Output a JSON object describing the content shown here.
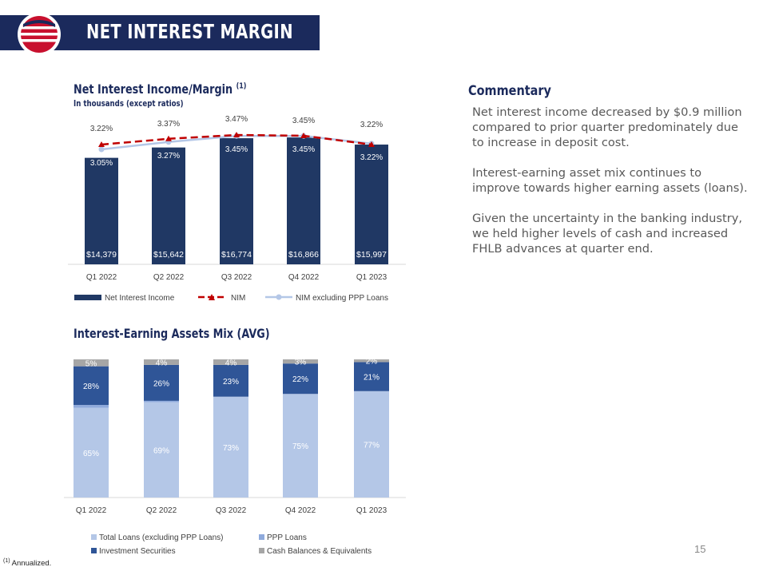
{
  "header": {
    "title": "NET INTEREST MARGIN"
  },
  "chart1": {
    "title": "Net Interest Income/Margin ",
    "title_sup": "(1)",
    "subtitle": "In thousands (except ratios)"
  },
  "chart2": {
    "title": "Interest-Earning Assets Mix (AVG)"
  },
  "commentary": {
    "heading": "Commentary",
    "paragraphs": [
      "Net interest income decreased by $0.9 million compared to prior quarter predominately due to increase in deposit cost.",
      "Interest-earning asset mix continues to improve towards higher earning assets (loans).",
      "Given the uncertainty in the banking industry, we held higher levels of cash and increased FHLB advances at quarter end."
    ]
  },
  "page_number": "15",
  "footnote": {
    "marker": "(1)",
    "text": " Annualized."
  },
  "colors": {
    "navy": "#1b2a5c",
    "bar": "#203864",
    "nim": "#c00000",
    "nim_ex": "#b4c7e7",
    "loans": "#b4c7e7",
    "ppp": "#8faadc",
    "inv": "#2f5597",
    "cash": "#a6a6a6"
  },
  "chart_data": [
    {
      "type": "bar",
      "categories": [
        "Q1 2022",
        "Q2 2022",
        "Q3 2022",
        "Q4 2022",
        "Q1 2023"
      ],
      "series": [
        {
          "name": "Net Interest Income",
          "type": "bar",
          "values": [
            14379,
            15642,
            16774,
            16866,
            15997
          ],
          "labels": [
            "$14,379",
            "$15,642",
            "$16,774",
            "$16,866",
            "$15,997"
          ]
        },
        {
          "name": "NIM",
          "type": "line",
          "values": [
            3.22,
            3.37,
            3.47,
            3.45,
            3.22
          ],
          "labels": [
            "3.22%",
            "3.37%",
            "3.47%",
            "3.45%",
            "3.22%"
          ]
        },
        {
          "name": "NIM excluding PPP Loans",
          "type": "line",
          "values": [
            3.05,
            3.27,
            3.45,
            3.45,
            3.22
          ],
          "labels": [
            "3.05%",
            "3.27%",
            "3.45%",
            "3.45%",
            "3.22%"
          ]
        }
      ],
      "legend": "bottom"
    },
    {
      "type": "bar",
      "stacked": true,
      "categories": [
        "Q1 2022",
        "Q2 2022",
        "Q3 2022",
        "Q4 2022",
        "Q1 2023"
      ],
      "series": [
        {
          "name": "Total Loans (excluding PPP Loans)",
          "values": [
            65,
            69,
            73,
            75,
            77
          ],
          "labels": [
            "65%",
            "69%",
            "73%",
            "75%",
            "77%"
          ]
        },
        {
          "name": "PPP Loans",
          "values": [
            2,
            1,
            0,
            0,
            0
          ],
          "labels": [
            "2%",
            "1%",
            "0%",
            "0%",
            "0%"
          ]
        },
        {
          "name": "Investment Securities",
          "values": [
            28,
            26,
            23,
            22,
            21
          ],
          "labels": [
            "28%",
            "26%",
            "23%",
            "22%",
            "21%"
          ]
        },
        {
          "name": "Cash Balances & Equivalents",
          "values": [
            5,
            4,
            4,
            3,
            2
          ],
          "labels": [
            "5%",
            "4%",
            "4%",
            "3%",
            "2%"
          ]
        }
      ],
      "legend": "bottom"
    }
  ]
}
